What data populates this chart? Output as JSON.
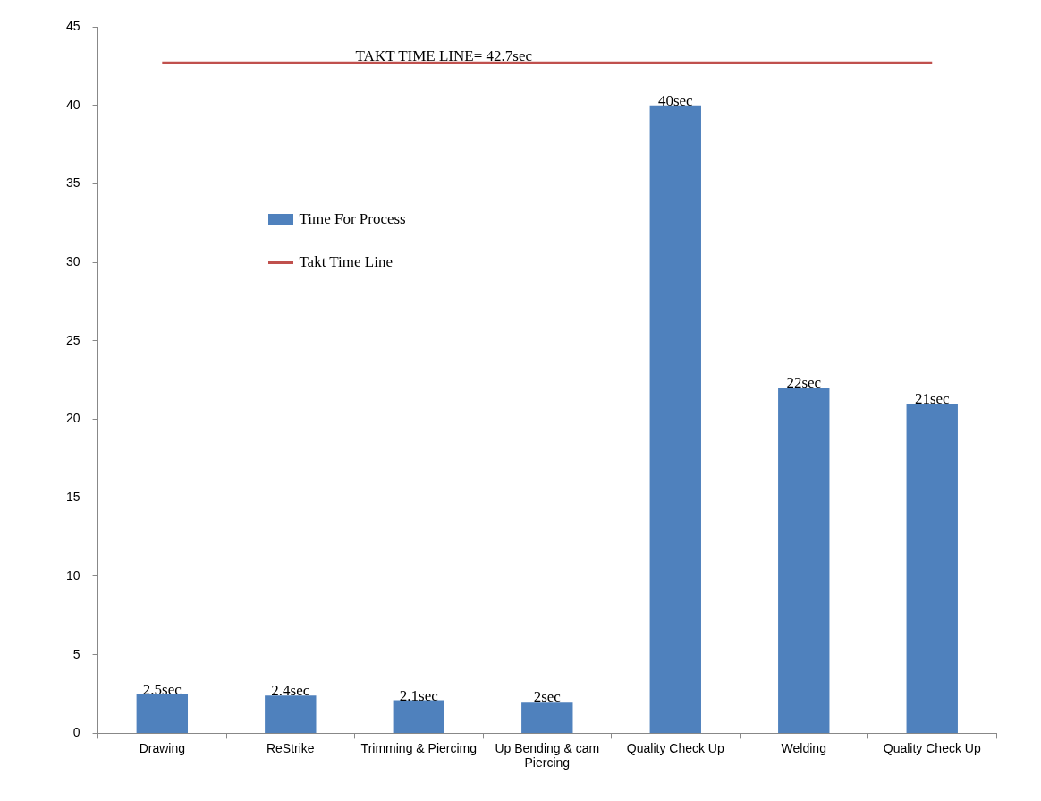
{
  "chart_data": {
    "type": "bar",
    "categories": [
      "Drawing",
      "ReStrike",
      "Trimming & Piercimg",
      "Up Bending & cam Piercing",
      "Quality Check Up",
      "Welding",
      "Quality Check Up"
    ],
    "series": [
      {
        "name": "Time For Process",
        "color": "#4f81bd",
        "values": [
          2.5,
          2.4,
          2.1,
          2,
          40,
          22,
          21
        ],
        "value_labels": [
          "2.5sec",
          "2.4sec",
          "2.1sec",
          "2sec",
          "40sec",
          "22sec",
          "21sec"
        ]
      },
      {
        "name": "Takt Time Line",
        "type": "line",
        "color": "#c0504d",
        "values": [
          42.7,
          42.7,
          42.7,
          42.7,
          42.7,
          42.7,
          42.7
        ]
      }
    ],
    "annotations": [
      {
        "text": "TAKT TIME LINE= 42.7sec",
        "x": "Trimming & Piercimg",
        "y": 42.7
      }
    ],
    "ylim": [
      0,
      45
    ],
    "yticks": [
      0,
      5,
      10,
      15,
      20,
      25,
      30,
      35,
      40,
      45
    ],
    "grid": false,
    "legend": "top left",
    "marker": "none"
  }
}
